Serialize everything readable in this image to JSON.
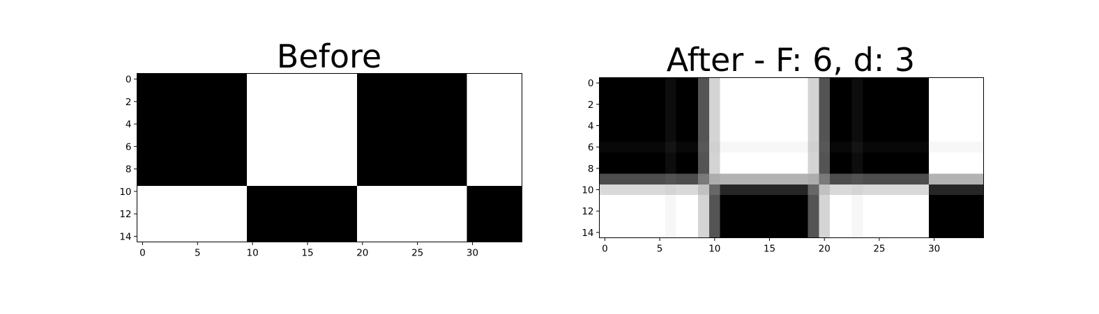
{
  "chart_data": [
    {
      "type": "heatmap",
      "title": "Before",
      "colormap": "gray",
      "vmin": 0,
      "vmax": 1,
      "xlabel": "",
      "ylabel": "",
      "xlim": [
        -0.5,
        34.5
      ],
      "ylim": [
        14.5,
        -0.5
      ],
      "xticks": [
        0,
        5,
        10,
        15,
        20,
        25,
        30
      ],
      "yticks": [
        0,
        2,
        4,
        6,
        8,
        10,
        12,
        14
      ],
      "shape": [
        15,
        35
      ],
      "rows": [
        "00000000001111111111000000000011111",
        "00000000001111111111000000000011111",
        "00000000001111111111000000000011111",
        "00000000001111111111000000000011111",
        "00000000001111111111000000000011111",
        "00000000001111111111000000000011111",
        "00000000001111111111000000000011111",
        "00000000001111111111000000000011111",
        "00000000001111111111000000000011111",
        "00000000001111111111000000000011111",
        "11111111110000000000111111111100000",
        "11111111110000000000111111111100000",
        "11111111110000000000111111111100000",
        "11111111110000000000111111111100000",
        "11111111110000000000111111111100000"
      ]
    },
    {
      "type": "heatmap",
      "title": "After - F: 6, d: 3",
      "colormap": "gray",
      "vmin": 0,
      "vmax": 1,
      "xlabel": "",
      "ylabel": "",
      "xlim": [
        -0.5,
        34.5
      ],
      "ylim": [
        14.5,
        -0.5
      ],
      "xticks": [
        0,
        5,
        10,
        15,
        20,
        25,
        30
      ],
      "yticks": [
        0,
        2,
        4,
        6,
        8,
        10,
        12,
        14
      ],
      "shape": [
        15,
        35
      ],
      "col_profile_top": [
        0,
        0,
        0,
        0,
        0,
        0,
        0.05,
        0,
        0,
        0.33,
        0.83,
        1,
        1,
        1,
        1,
        1,
        1,
        1,
        1,
        0.83,
        0.33,
        0,
        0,
        0.05,
        0,
        0,
        0,
        0,
        0,
        0,
        1,
        1,
        1,
        1,
        1
      ],
      "col_profile_bottom": [
        1,
        1,
        1,
        1,
        1,
        1,
        0.97,
        1,
        1,
        0.83,
        0.33,
        0,
        0,
        0,
        0,
        0,
        0,
        0,
        0,
        0.33,
        0.83,
        1,
        1,
        0.97,
        1,
        1,
        1,
        1,
        1,
        1,
        0,
        0,
        0,
        0,
        0
      ],
      "row_weights": [
        0,
        0,
        0,
        0,
        0,
        0,
        0.03,
        0,
        0,
        0.3,
        0.85,
        1,
        1,
        1,
        1
      ]
    }
  ]
}
